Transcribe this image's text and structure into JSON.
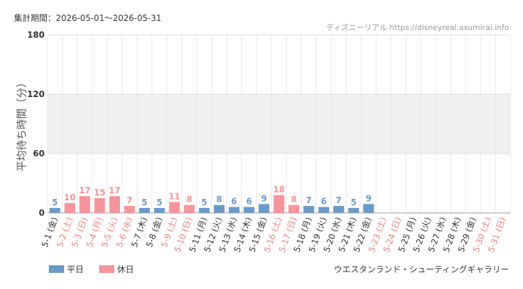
{
  "chart_data": {
    "type": "bar",
    "title": "集計期間：2026-05-01〜2026-05-31",
    "source": "ディズニーリアル https://disneyreal.asumirai.info",
    "subtitle": "ウエスタンランド・シューティングギャラリー",
    "y_label": "平均待ち時間（分）",
    "categories": [
      "5-1 (金)",
      "5-2 (土)",
      "5-3 (日)",
      "5-4 (月)",
      "5-5 (火)",
      "5-6 (水)",
      "5-7 (木)",
      "5-8 (金)",
      "5-9 (土)",
      "5-10 (日)",
      "5-11 (月)",
      "5-12 (火)",
      "5-13 (水)",
      "5-14 (木)",
      "5-15 (金)",
      "5-16 (土)",
      "5-17 (日)",
      "5-18 (月)",
      "5-19 (火)",
      "5-20 (水)",
      "5-21 (木)",
      "5-22 (金)",
      "5-23 (土)",
      "5-24 (日)",
      "5-25 (月)",
      "5-26 (火)",
      "5-27 (水)",
      "5-28 (木)",
      "5-29 (金)",
      "5-30 (土)",
      "5-31 (日)"
    ],
    "category_colors": [
      "#333333",
      "#f08080",
      "#f08080",
      "#f08080",
      "#f08080",
      "#f08080",
      "#333333",
      "#333333",
      "#f08080",
      "#f08080",
      "#333333",
      "#333333",
      "#333333",
      "#333333",
      "#333333",
      "#f08080",
      "#f08080",
      "#333333",
      "#333333",
      "#333333",
      "#333333",
      "#333333",
      "#f08080",
      "#f08080",
      "#333333",
      "#333333",
      "#333333",
      "#333333",
      "#333333",
      "#f08080",
      "#f08080"
    ],
    "series": [
      {
        "name": "平日",
        "color": "#6b9ac8",
        "values": [
          5,
          null,
          null,
          null,
          null,
          null,
          5,
          5,
          null,
          null,
          5,
          8,
          6,
          6,
          9,
          null,
          null,
          7,
          6,
          7,
          5,
          9,
          null,
          null,
          null,
          null,
          null,
          null,
          null,
          null,
          null
        ]
      },
      {
        "name": "休日",
        "color": "#f4959b",
        "values": [
          null,
          10,
          17,
          15,
          17,
          7,
          null,
          null,
          11,
          8,
          null,
          null,
          null,
          null,
          null,
          18,
          8,
          null,
          null,
          null,
          null,
          null,
          null,
          null,
          null,
          null,
          null,
          null,
          null,
          null,
          null
        ]
      }
    ],
    "ylim": [
      0,
      180
    ],
    "yticks": [
      0,
      60,
      120,
      180
    ],
    "grid": true
  }
}
